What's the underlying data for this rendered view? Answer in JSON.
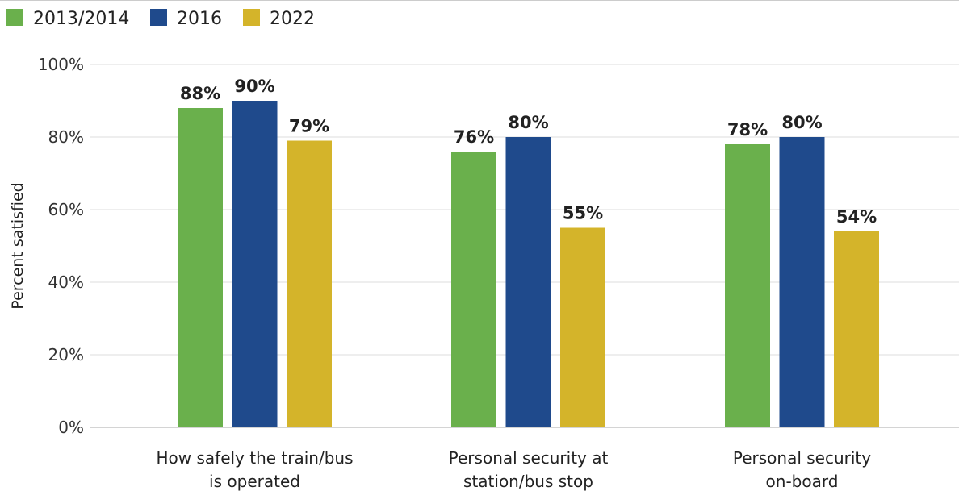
{
  "chart_data": {
    "type": "bar",
    "categories": [
      [
        "How safely the train/bus",
        "is operated"
      ],
      [
        "Personal security at",
        "station/bus stop"
      ],
      [
        "Personal security",
        "on-board"
      ]
    ],
    "series": [
      {
        "name": "2013/2014",
        "color": "#6ab04c",
        "values": [
          88,
          76,
          78
        ],
        "labels": [
          "88%",
          "76%",
          "78%"
        ]
      },
      {
        "name": "2016",
        "color": "#1f4a8c",
        "values": [
          90,
          80,
          80
        ],
        "labels": [
          "90%",
          "80%",
          "80%"
        ]
      },
      {
        "name": "2022",
        "color": "#d4b42a",
        "values": [
          79,
          55,
          54
        ],
        "labels": [
          "79%",
          "55%",
          "54%"
        ]
      }
    ],
    "ylabel": "Percent satisfied",
    "ylim": [
      0,
      100
    ],
    "yticks": [
      0,
      20,
      40,
      60,
      80,
      100
    ],
    "ytick_labels": [
      "0%",
      "20%",
      "40%",
      "60%",
      "80%",
      "100%"
    ],
    "grid": true,
    "legend_position": "top-left"
  }
}
